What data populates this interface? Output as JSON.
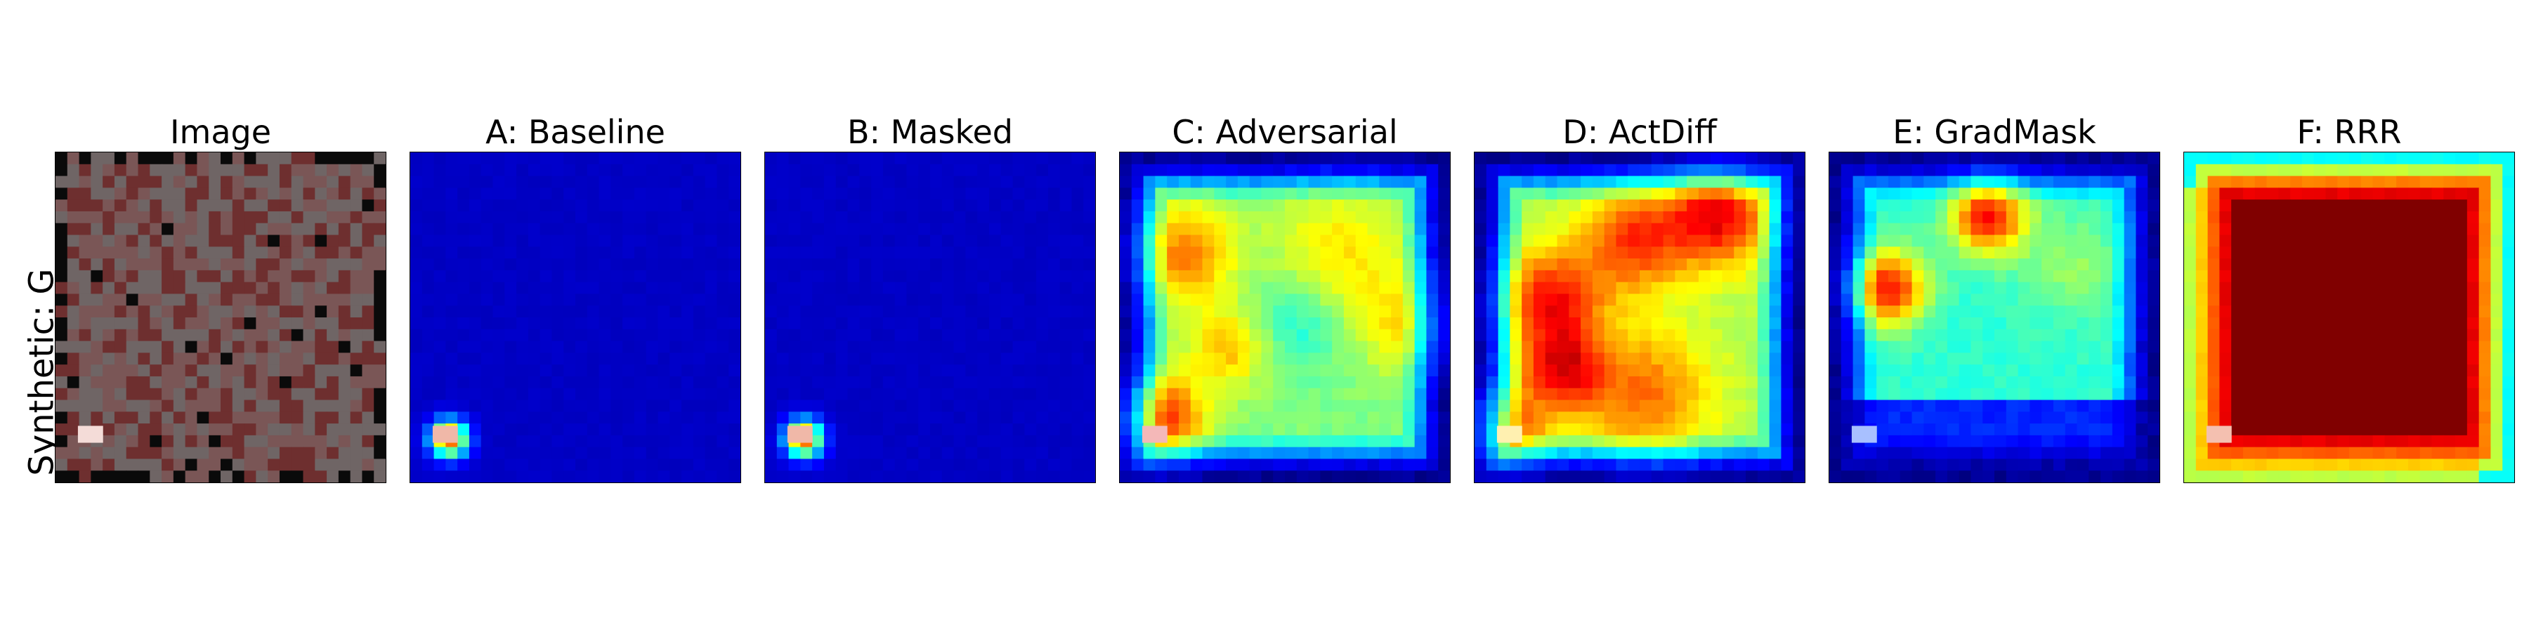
{
  "row_label": "Synthetic: G",
  "panels": [
    {
      "id": "image",
      "title": "Image",
      "kind": "input",
      "patch_color": "#f4dcd8"
    },
    {
      "id": "baseline",
      "title": "A: Baseline",
      "kind": "focal",
      "patch_color": "#f0b8a8"
    },
    {
      "id": "masked",
      "title": "B: Masked",
      "kind": "focal",
      "patch_color": "#f0b8a8"
    },
    {
      "id": "adversarial",
      "title": "C: Adversarial",
      "kind": "blobby",
      "patch_color": "#f4b8b8"
    },
    {
      "id": "actdiff",
      "title": "D: ActDiff",
      "kind": "blobby-strong",
      "patch_color": "#fff0b0"
    },
    {
      "id": "gradmask",
      "title": "E: GradMask",
      "kind": "blobby-cool",
      "patch_color": "#a8c0ff"
    },
    {
      "id": "rrr",
      "title": "F: RRR",
      "kind": "smooth-hot",
      "patch_color": "#f4c0b0"
    }
  ]
}
